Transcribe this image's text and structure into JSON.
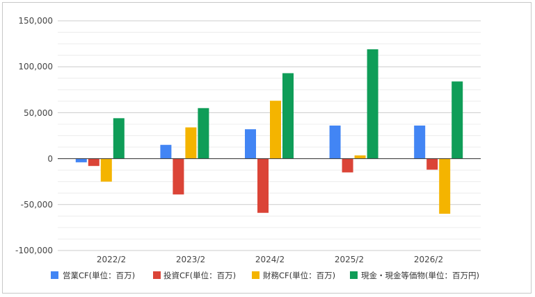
{
  "chart_data": {
    "type": "bar",
    "categories": [
      "2022/2",
      "2023/2",
      "2024/2",
      "2025/2",
      "2026/2"
    ],
    "series": [
      {
        "name": "営業CF(単位：百万)",
        "color": "#4285f4",
        "values": [
          -4000,
          15000,
          32000,
          36000,
          36000
        ]
      },
      {
        "name": "投資CF(単位：百万)",
        "color": "#db4437",
        "values": [
          -8000,
          -39000,
          -59000,
          -15000,
          -12000
        ]
      },
      {
        "name": "財務CF(単位：百万)",
        "color": "#f4b400",
        "values": [
          -25000,
          34000,
          63000,
          3500,
          -60000
        ]
      },
      {
        "name": "現金・現金等価物(単位：百万円)",
        "color": "#0f9d58",
        "values": [
          44000,
          55000,
          93000,
          119000,
          84000
        ]
      }
    ],
    "yticks": [
      "150,000",
      "100,000",
      "50,000",
      "0",
      "-50,000",
      "-100,000"
    ],
    "ylim": [
      -100000,
      150000
    ],
    "grid": true,
    "legend_position": "bottom"
  }
}
